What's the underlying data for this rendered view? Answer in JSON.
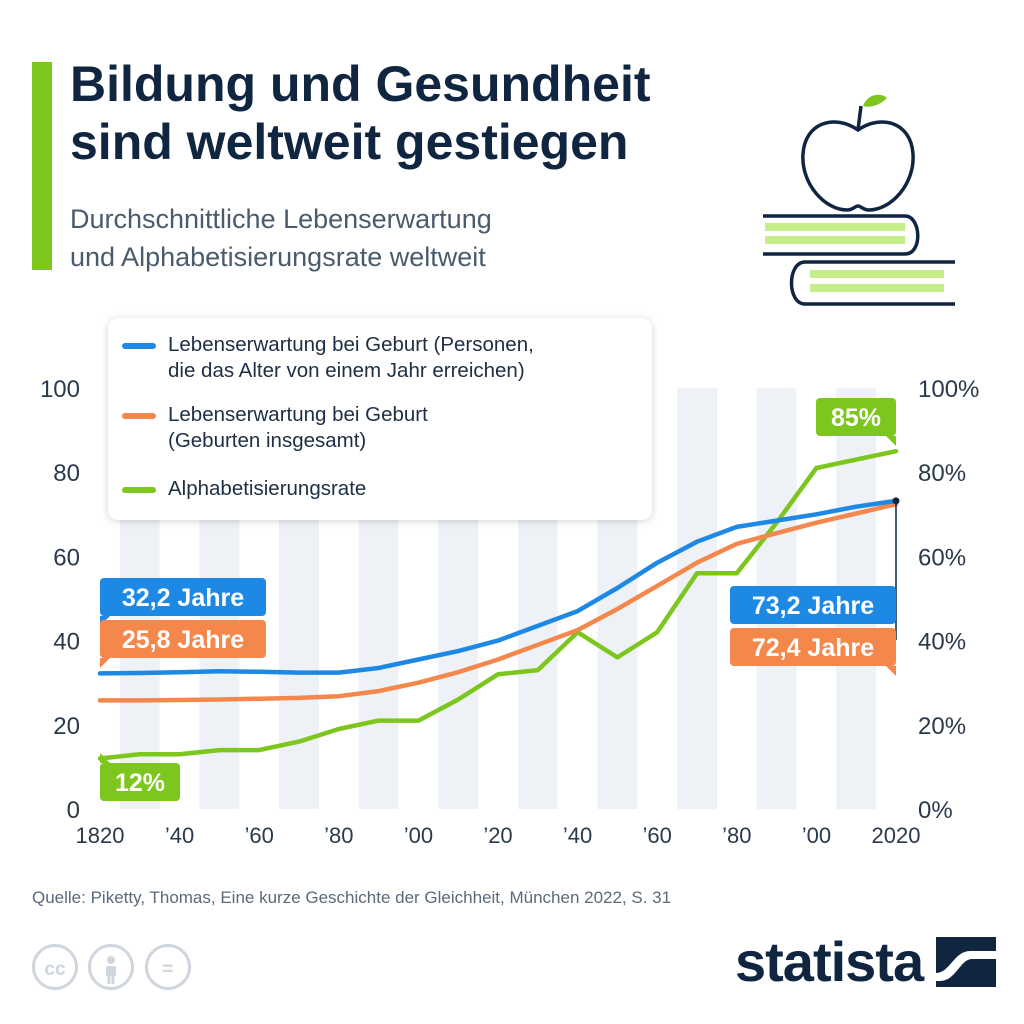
{
  "header": {
    "title_line1": "Bildung und Gesundheit",
    "title_line2": "sind weltweit gestiegen",
    "subtitle_line1": "Durchschnittliche Lebenserwartung",
    "subtitle_line2": "und Alphabetisierungsrate weltweit"
  },
  "legend": {
    "items": [
      {
        "label_line1": "Lebenserwartung bei Geburt (Personen,",
        "label_line2": "die das Alter von einem Jahr erreichen)",
        "color": "#1e88e5"
      },
      {
        "label_line1": "Lebenserwartung bei Geburt",
        "label_line2": "(Geburten insgesamt)",
        "color": "#f4874b"
      },
      {
        "label_line1": "Alphabetisierungsrate",
        "label_line2": "",
        "color": "#7cc61e"
      }
    ]
  },
  "chart_data": {
    "type": "line",
    "x": [
      1820,
      1830,
      1840,
      1850,
      1860,
      1870,
      1880,
      1890,
      1900,
      1910,
      1920,
      1930,
      1940,
      1950,
      1960,
      1970,
      1980,
      1990,
      2000,
      2010,
      2020
    ],
    "x_tick_labels": [
      "1820",
      "’40",
      "’60",
      "’80",
      "’00",
      "’20",
      "’40",
      "’60",
      "’80",
      "’00",
      "2020"
    ],
    "x_tick_values": [
      1820,
      1840,
      1860,
      1880,
      1900,
      1920,
      1940,
      1960,
      1980,
      2000,
      2020
    ],
    "y_left_ticks": [
      "0",
      "20",
      "40",
      "60",
      "80",
      "100"
    ],
    "y_right_ticks": [
      "0%",
      "20%",
      "40%",
      "60%",
      "80%",
      "100%"
    ],
    "ylim": [
      0,
      100
    ],
    "grid": "alternating vertical bands",
    "series": [
      {
        "name": "Lebenserwartung bei Geburt (Personen, die das Alter von einem Jahr erreichen)",
        "color": "#1e88e5",
        "values": [
          32.2,
          32.3,
          32.5,
          32.7,
          32.6,
          32.4,
          32.4,
          33.5,
          35.5,
          37.5,
          40,
          43.5,
          47,
          52.5,
          58.5,
          63.5,
          67,
          68.5,
          70,
          71.8,
          73.2
        ]
      },
      {
        "name": "Lebenserwartung bei Geburt (Geburten insgesamt)",
        "color": "#f4874b",
        "values": [
          25.8,
          25.8,
          25.9,
          26,
          26.2,
          26.4,
          26.8,
          28,
          30,
          32.5,
          35.5,
          39,
          42.5,
          47.5,
          53,
          58.5,
          63,
          65.5,
          68,
          70.2,
          72.4
        ]
      },
      {
        "name": "Alphabetisierungsrate",
        "color": "#7cc61e",
        "values": [
          12,
          13,
          13,
          14,
          14,
          16,
          19,
          21,
          21,
          26,
          32,
          33,
          42,
          36,
          42,
          56,
          56,
          68,
          81,
          83,
          85
        ]
      }
    ],
    "annotations": [
      {
        "text": "32,2 Jahre",
        "color": "#1e88e5"
      },
      {
        "text": "25,8 Jahre",
        "color": "#f4874b"
      },
      {
        "text": "12%",
        "color": "#7cc61e"
      },
      {
        "text": "85%",
        "color": "#7cc61e"
      },
      {
        "text": "73,2 Jahre",
        "color": "#1e88e5"
      },
      {
        "text": "72,4 Jahre",
        "color": "#f4874b"
      }
    ]
  },
  "footer": {
    "source": "Quelle: Piketty, Thomas, Eine kurze Geschichte der Gleichheit, München 2022, S. 31",
    "cc_icons": [
      "cc-icon",
      "person-icon",
      "equals-icon"
    ],
    "cc_label": "cc",
    "equals_label": "=",
    "logo": "statista"
  },
  "colors": {
    "accent": "#7cc61e",
    "title": "#0f2540",
    "band": "#eef1f6"
  }
}
